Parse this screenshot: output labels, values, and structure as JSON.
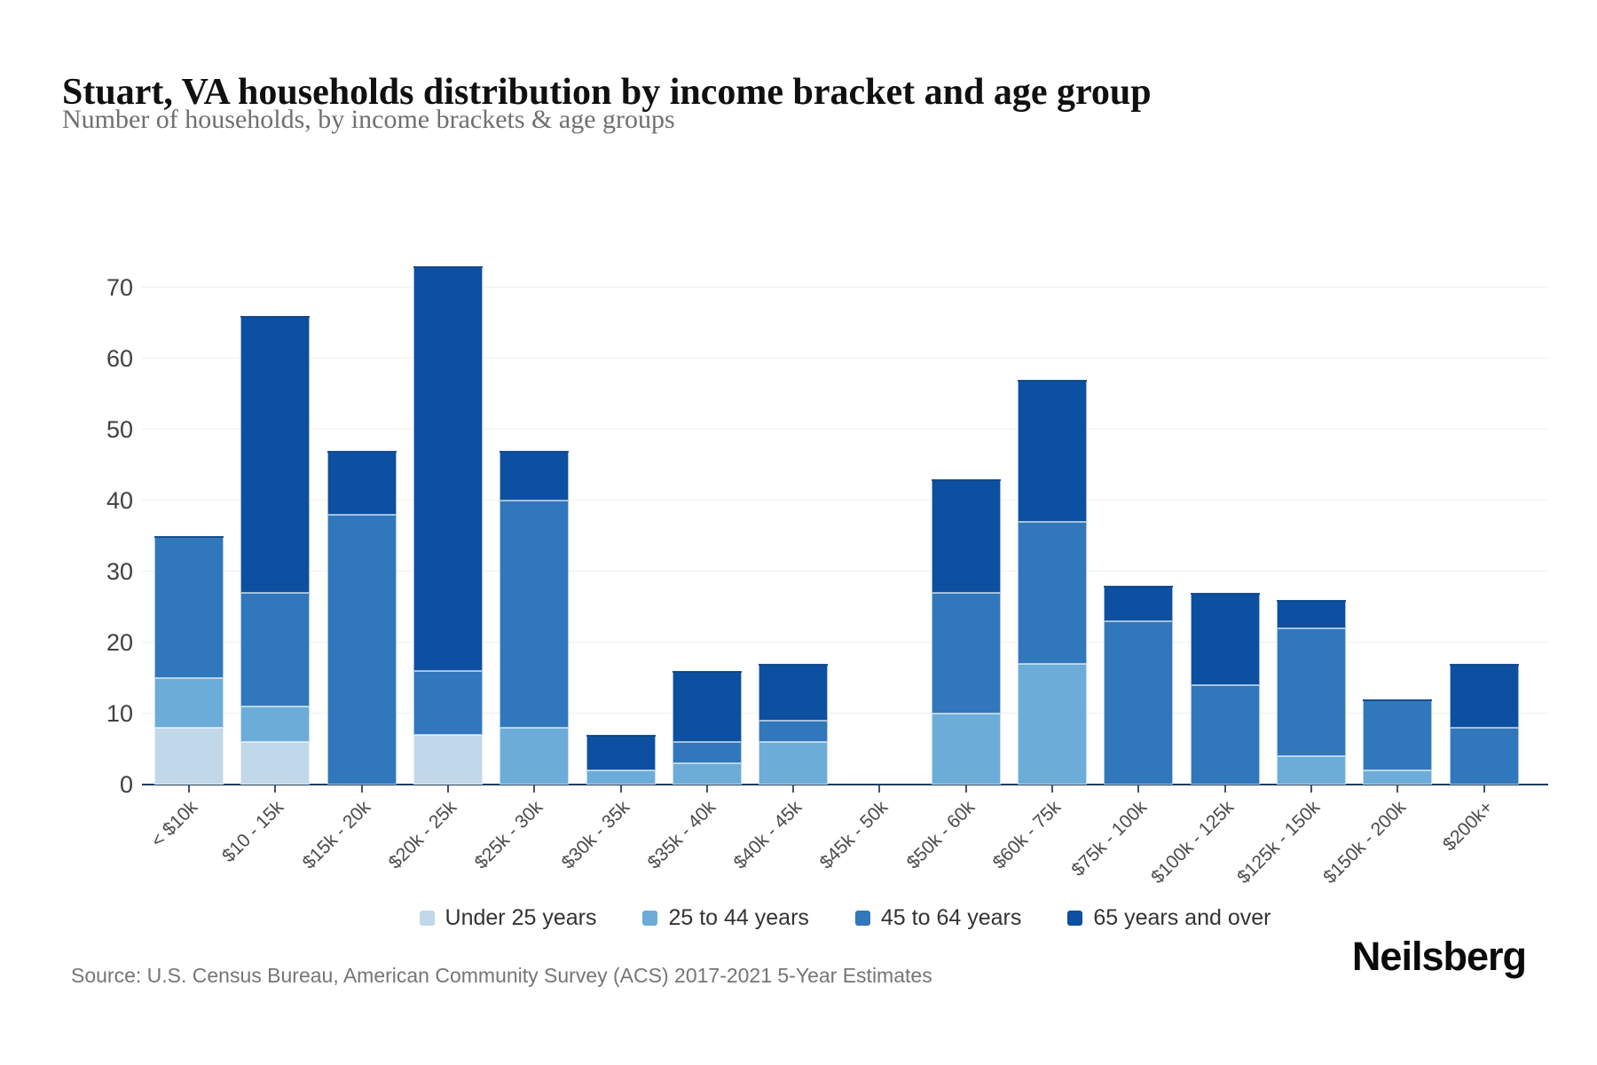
{
  "header": {
    "title": "Stuart, VA households distribution by income bracket and age group",
    "subtitle": "Number of households, by income brackets & age groups"
  },
  "footer": {
    "source": "Source: U.S. Census Bureau, American Community Survey (ACS) 2017-2021 5-Year Estimates",
    "brand": "Neilsberg"
  },
  "chart_data": {
    "type": "bar",
    "stacked": true,
    "title": "Stuart, VA households distribution by income bracket and age group",
    "subtitle": "Number of households, by income brackets & age groups",
    "xlabel": "",
    "ylabel": "",
    "ylim": [
      0,
      75
    ],
    "yticks": [
      0,
      10,
      20,
      30,
      40,
      50,
      60,
      70
    ],
    "grid": true,
    "legend_position": "bottom",
    "categories": [
      "< $10k",
      "$10 - 15k",
      "$15k - 20k",
      "$20k - 25k",
      "$25k - 30k",
      "$30k - 35k",
      "$35k - 40k",
      "$40k - 45k",
      "$45k - 50k",
      "$50k - 60k",
      "$60k - 75k",
      "$75k - 100k",
      "$100k - 125k",
      "$125k - 150k",
      "$150k - 200k",
      "$200k+"
    ],
    "series": [
      {
        "name": "Under 25 years",
        "color": "#c1d7ea",
        "values": [
          8,
          6,
          0,
          7,
          0,
          0,
          0,
          0,
          0,
          0,
          0,
          0,
          0,
          0,
          0,
          0
        ]
      },
      {
        "name": "25 to 44 years",
        "color": "#6cacd8",
        "values": [
          7,
          5,
          0,
          0,
          8,
          2,
          3,
          6,
          0,
          10,
          17,
          0,
          0,
          4,
          2,
          0
        ]
      },
      {
        "name": "45 to 64 years",
        "color": "#3177bc",
        "values": [
          20,
          16,
          38,
          9,
          32,
          0,
          3,
          3,
          0,
          17,
          20,
          23,
          14,
          18,
          10,
          8
        ]
      },
      {
        "name": "65 years and over",
        "color": "#0d4fa0",
        "values": [
          0,
          39,
          9,
          57,
          7,
          5,
          10,
          8,
          0,
          16,
          20,
          5,
          13,
          4,
          0,
          9
        ]
      }
    ],
    "totals": [
      35,
      66,
      47,
      73,
      47,
      7,
      16,
      17,
      0,
      43,
      57,
      28,
      27,
      26,
      12,
      17
    ],
    "colors": {
      "axis": "#1d3c5e",
      "grid": "#efefef",
      "tick_label": "#404040"
    }
  }
}
